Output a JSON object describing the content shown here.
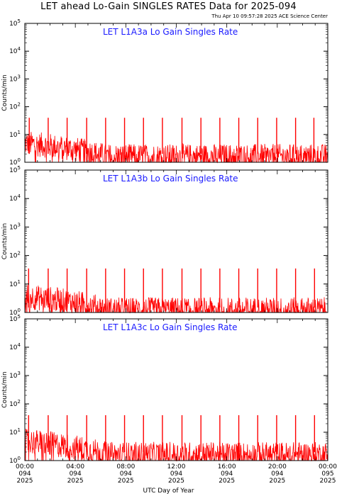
{
  "header": {
    "title": "LET ahead Lo-Gain SINGLES RATES Data for 2025-094",
    "timestamp": "Thu Apr 10 09:57:28 2025 ACE Science Center"
  },
  "colors": {
    "trace": "#ff0000",
    "panel_title": "#1a1aff",
    "axes": "#000000"
  },
  "chart_data": [
    {
      "type": "line",
      "title": "LET L1A3a Lo Gain Singles Rate",
      "ylabel": "Counts/min",
      "yscale": "log",
      "ylim": [
        1,
        100000
      ],
      "yticks": [
        "10^0",
        "10^1",
        "10^2",
        "10^3",
        "10^4",
        "10^5"
      ],
      "baseline_counts": 2,
      "spike_peak_counts": 40,
      "spike_times_h": [
        0.35,
        1.85,
        3.35,
        4.9,
        6.4,
        7.9,
        9.4,
        10.9,
        12.45,
        13.95,
        15.45,
        16.95,
        18.45,
        19.95,
        21.45,
        22.9
      ]
    },
    {
      "type": "line",
      "title": "LET L1A3b Lo Gain Singles Rate",
      "ylabel": "Counts/min",
      "yscale": "log",
      "ylim": [
        1,
        100000
      ],
      "yticks": [
        "10^0",
        "10^1",
        "10^2",
        "10^3",
        "10^4",
        "10^5"
      ],
      "baseline_counts": 1.5,
      "spike_peak_counts": 35,
      "spike_times_h": [
        0.3,
        1.85,
        3.35,
        4.9,
        6.4,
        7.9,
        9.4,
        10.9,
        12.45,
        13.95,
        15.45,
        16.95,
        18.45,
        19.95,
        21.45,
        22.95
      ]
    },
    {
      "type": "line",
      "title": "LET L1A3c Lo Gain Singles Rate",
      "ylabel": "Counts/min",
      "yscale": "log",
      "ylim": [
        1,
        100000
      ],
      "yticks": [
        "10^0",
        "10^1",
        "10^2",
        "10^3",
        "10^4",
        "10^5"
      ],
      "baseline_counts": 2,
      "spike_peak_counts": 40,
      "spike_times_h": [
        0.3,
        1.85,
        3.35,
        4.9,
        6.4,
        7.9,
        9.4,
        10.9,
        12.45,
        13.95,
        15.45,
        16.95,
        18.45,
        19.95,
        21.45,
        22.95
      ]
    }
  ],
  "x_axis": {
    "title": "UTC Day of Year",
    "ticks": [
      {
        "h": 0,
        "time": "00:00",
        "doy": "094",
        "year": "2025"
      },
      {
        "h": 4,
        "time": "04:00",
        "doy": "094",
        "year": "2025"
      },
      {
        "h": 8,
        "time": "08:00",
        "doy": "094",
        "year": "2025"
      },
      {
        "h": 12,
        "time": "12:00",
        "doy": "094",
        "year": "2025"
      },
      {
        "h": 16,
        "time": "16:00",
        "doy": "094",
        "year": "2025"
      },
      {
        "h": 20,
        "time": "20:00",
        "doy": "094",
        "year": "2025"
      },
      {
        "h": 24,
        "time": "00:00",
        "doy": "095",
        "year": "2025"
      }
    ]
  }
}
